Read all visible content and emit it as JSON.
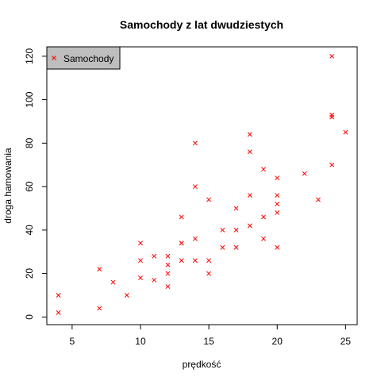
{
  "chart_data": {
    "type": "scatter",
    "title": "Samochody z lat dwudziestych",
    "xlabel": "prędkość",
    "ylabel": "droga hamowania",
    "xlim": [
      3.15,
      25.85
    ],
    "ylim": [
      -3.52,
      124.32
    ],
    "x_ticks": [
      5,
      10,
      15,
      20,
      25
    ],
    "y_ticks": [
      0,
      20,
      40,
      60,
      80,
      100,
      120
    ],
    "grid": false,
    "legend_position": "top-left",
    "marker": "x",
    "series": [
      {
        "name": "Samochody",
        "color": "#ff0000",
        "points": [
          [
            4,
            2
          ],
          [
            4,
            10
          ],
          [
            7,
            4
          ],
          [
            7,
            22
          ],
          [
            8,
            16
          ],
          [
            9,
            10
          ],
          [
            10,
            18
          ],
          [
            10,
            26
          ],
          [
            10,
            34
          ],
          [
            11,
            17
          ],
          [
            11,
            28
          ],
          [
            12,
            14
          ],
          [
            12,
            20
          ],
          [
            12,
            24
          ],
          [
            12,
            28
          ],
          [
            13,
            26
          ],
          [
            13,
            34
          ],
          [
            13,
            34
          ],
          [
            13,
            46
          ],
          [
            14,
            26
          ],
          [
            14,
            36
          ],
          [
            14,
            60
          ],
          [
            14,
            80
          ],
          [
            15,
            20
          ],
          [
            15,
            26
          ],
          [
            15,
            54
          ],
          [
            16,
            32
          ],
          [
            16,
            40
          ],
          [
            17,
            32
          ],
          [
            17,
            40
          ],
          [
            17,
            50
          ],
          [
            18,
            42
          ],
          [
            18,
            56
          ],
          [
            18,
            76
          ],
          [
            18,
            84
          ],
          [
            19,
            36
          ],
          [
            19,
            46
          ],
          [
            19,
            68
          ],
          [
            20,
            32
          ],
          [
            20,
            48
          ],
          [
            20,
            52
          ],
          [
            20,
            56
          ],
          [
            20,
            64
          ],
          [
            22,
            66
          ],
          [
            23,
            54
          ],
          [
            24,
            70
          ],
          [
            24,
            92
          ],
          [
            24,
            93
          ],
          [
            24,
            120
          ],
          [
            25,
            85
          ]
        ]
      }
    ]
  }
}
